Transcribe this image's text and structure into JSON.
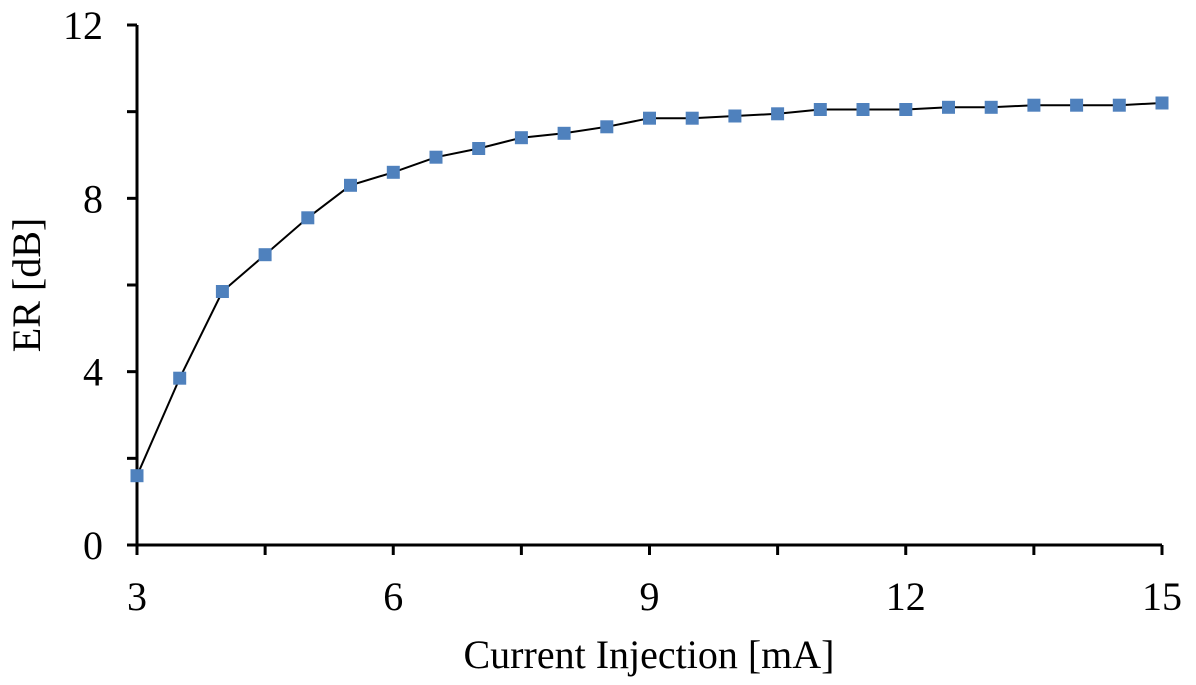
{
  "chart_data": {
    "type": "line",
    "title": "",
    "xlabel": "Current Injection [mA]",
    "ylabel": "ER [dB]",
    "xlim": [
      3,
      15
    ],
    "ylim": [
      0,
      12
    ],
    "x_ticks": [
      3,
      6,
      9,
      12,
      15
    ],
    "x_tick_labels": [
      "3",
      "6",
      "9",
      "12",
      "15"
    ],
    "x_minor_ticks": [
      4.5,
      7.5,
      10.5,
      13.5
    ],
    "y_ticks": [
      0,
      4,
      8,
      12
    ],
    "y_tick_labels": [
      "0",
      "4",
      "8",
      "12"
    ],
    "y_minor_ticks": [
      2,
      6,
      10
    ],
    "grid": false,
    "legend": "none",
    "series": [
      {
        "marker": "square",
        "color": "#4F81BD",
        "line_color": "#000000",
        "x": [
          3,
          3.5,
          4,
          4.5,
          5,
          5.5,
          6,
          6.5,
          7,
          7.5,
          8,
          8.5,
          9,
          9.5,
          10,
          10.5,
          11,
          11.5,
          12,
          12.5,
          13,
          13.5,
          14,
          14.5,
          15
        ],
        "y": [
          1.6,
          3.85,
          5.85,
          6.7,
          7.55,
          8.3,
          8.6,
          8.95,
          9.15,
          9.4,
          9.5,
          9.65,
          9.85,
          9.85,
          9.9,
          9.95,
          10.05,
          10.05,
          10.05,
          10.1,
          10.1,
          10.15,
          10.15,
          10.15,
          10.2
        ]
      }
    ]
  }
}
